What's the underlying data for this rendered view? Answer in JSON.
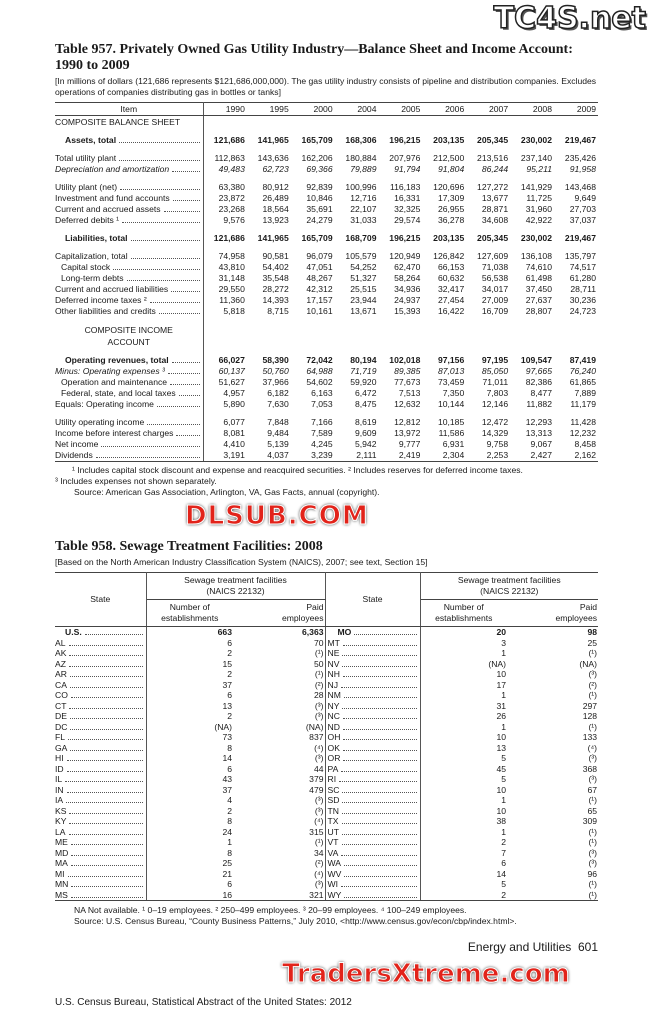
{
  "watermarks": {
    "top": "TC4S.net",
    "middle": "DLSUB.COM",
    "bottom": "TradersXtreme.com"
  },
  "table957": {
    "title": "Table 957. Privately Owned Gas Utility Industry—Balance Sheet and Income Account: 1990 to 2009",
    "headnote": "[In millions of dollars (121,686 represents $121,686,000,000). The gas utility industry consists of pipeline and distribution companies. Excludes operations of companies distributing gas in bottles or tanks]",
    "columns": [
      "Item",
      "1990",
      "1995",
      "2000",
      "2004",
      "2005",
      "2006",
      "2007",
      "2008",
      "2009"
    ],
    "rows": [
      {
        "type": "section",
        "label": "COMPOSITE BALANCE SHEET"
      },
      {
        "type": "spacer"
      },
      {
        "type": "bold",
        "label": "Assets, total",
        "values": [
          "121,686",
          "141,965",
          "165,709",
          "168,306",
          "196,215",
          "203,135",
          "205,345",
          "230,002",
          "219,467"
        ]
      },
      {
        "type": "spacer"
      },
      {
        "label": "Total utility plant",
        "values": [
          "112,863",
          "143,636",
          "162,206",
          "180,884",
          "207,976",
          "212,500",
          "213,516",
          "237,140",
          "235,426"
        ]
      },
      {
        "type": "italic",
        "label": "Depreciation and amortization",
        "values": [
          "49,483",
          "62,723",
          "69,366",
          "79,889",
          "91,794",
          "91,804",
          "86,244",
          "95,211",
          "91,958"
        ]
      },
      {
        "type": "spacer"
      },
      {
        "label": "Utility plant (net)",
        "values": [
          "63,380",
          "80,912",
          "92,839",
          "100,996",
          "116,183",
          "120,696",
          "127,272",
          "141,929",
          "143,468"
        ]
      },
      {
        "label": "Investment and fund accounts",
        "values": [
          "23,872",
          "26,489",
          "10,846",
          "12,716",
          "16,331",
          "17,309",
          "13,677",
          "11,725",
          "9,649"
        ]
      },
      {
        "label": "Current and accrued assets",
        "values": [
          "23,268",
          "18,564",
          "35,691",
          "22,107",
          "32,325",
          "26,955",
          "28,871",
          "31,960",
          "27,703"
        ]
      },
      {
        "label": "Deferred debits ¹",
        "values": [
          "9,576",
          "13,923",
          "24,279",
          "31,033",
          "29,574",
          "36,278",
          "34,608",
          "42,922",
          "37,037"
        ]
      },
      {
        "type": "spacer"
      },
      {
        "type": "bold",
        "label": "Liabilities, total",
        "values": [
          "121,686",
          "141,965",
          "165,709",
          "168,709",
          "196,215",
          "203,135",
          "205,345",
          "230,002",
          "219,467"
        ]
      },
      {
        "type": "spacer"
      },
      {
        "label": "Capitalization, total",
        "values": [
          "74,958",
          "90,581",
          "96,079",
          "105,579",
          "120,949",
          "126,842",
          "127,609",
          "136,108",
          "135,797"
        ]
      },
      {
        "type": "indent",
        "label": "Capital stock",
        "values": [
          "43,810",
          "54,402",
          "47,051",
          "54,252",
          "62,470",
          "66,153",
          "71,038",
          "74,610",
          "74,517"
        ]
      },
      {
        "type": "indent",
        "label": "Long-term debts",
        "values": [
          "31,148",
          "35,548",
          "48,267",
          "51,327",
          "58,264",
          "60,632",
          "56,538",
          "61,498",
          "61,280"
        ]
      },
      {
        "label": "Current and accrued liabilities",
        "values": [
          "29,550",
          "28,272",
          "42,312",
          "25,515",
          "34,936",
          "32,417",
          "34,017",
          "37,450",
          "28,711"
        ]
      },
      {
        "label": "Deferred income taxes ²",
        "values": [
          "11,360",
          "14,393",
          "17,157",
          "23,944",
          "24,937",
          "27,454",
          "27,009",
          "27,637",
          "30,236"
        ]
      },
      {
        "label": "Other liabilities and credits",
        "values": [
          "5,818",
          "8,715",
          "10,161",
          "13,671",
          "15,393",
          "16,422",
          "16,709",
          "28,807",
          "24,723"
        ]
      },
      {
        "type": "spacer"
      },
      {
        "type": "section",
        "label": "COMPOSITE INCOME ACCOUNT"
      },
      {
        "type": "spacer"
      },
      {
        "type": "bold",
        "label": "Operating revenues, total",
        "values": [
          "66,027",
          "58,390",
          "72,042",
          "80,194",
          "102,018",
          "97,156",
          "97,195",
          "109,547",
          "87,419"
        ]
      },
      {
        "type": "italic",
        "label": "Minus: Operating expenses ³",
        "values": [
          "60,137",
          "50,760",
          "64,988",
          "71,719",
          "89,385",
          "87,013",
          "85,050",
          "97,665",
          "76,240"
        ]
      },
      {
        "type": "indent",
        "label": "Operation and maintenance",
        "values": [
          "51,627",
          "37,966",
          "54,602",
          "59,920",
          "77,673",
          "73,459",
          "71,011",
          "82,386",
          "61,865"
        ]
      },
      {
        "type": "indent",
        "label": "Federal, state, and local taxes",
        "values": [
          "4,957",
          "6,182",
          "6,163",
          "6,472",
          "7,513",
          "7,350",
          "7,803",
          "8,477",
          "7,889"
        ]
      },
      {
        "label": "Equals: Operating income",
        "values": [
          "5,890",
          "7,630",
          "7,053",
          "8,475",
          "12,632",
          "10,144",
          "12,146",
          "11,882",
          "11,179"
        ]
      },
      {
        "type": "spacer"
      },
      {
        "label": "Utility operating income",
        "values": [
          "6,077",
          "7,848",
          "7,166",
          "8,619",
          "12,812",
          "10,185",
          "12,472",
          "12,293",
          "11,428"
        ]
      },
      {
        "label": "Income before interest charges",
        "values": [
          "8,081",
          "9,484",
          "7,589",
          "9,609",
          "13,972",
          "11,586",
          "14,329",
          "13,313",
          "12,232"
        ]
      },
      {
        "label": "Net income",
        "values": [
          "4,410",
          "5,139",
          "4,245",
          "5,942",
          "9,777",
          "6,931",
          "9,758",
          "9,067",
          "8,458"
        ]
      },
      {
        "label": "Dividends",
        "values": [
          "3,191",
          "4,037",
          "3,239",
          "2,111",
          "2,419",
          "2,304",
          "2,253",
          "2,427",
          "2,162"
        ]
      }
    ],
    "footnote1": "¹ Includes capital stock discount and expense and reacquired securities. ² Includes reserves for deferred income taxes.",
    "footnote2": "³ Includes expenses not shown separately.",
    "source": "Source: American Gas Association, Arlington, VA, Gas Facts, annual (copyright)."
  },
  "table958": {
    "title": "Table 958. Sewage Treatment Facilities: 2008",
    "headnote": "[Based on the North American Industry Classification System (NAICS), 2007; see text, Section 15]",
    "header": {
      "state": "State",
      "group": "Sewage treatment facilities (NAICS 22132)",
      "establishments": "Number of establishments",
      "employees": "Paid employees"
    },
    "rows": [
      {
        "left": [
          "U.S.",
          "663",
          "6,363"
        ],
        "right": [
          "MO",
          "20",
          "98"
        ]
      },
      {
        "left": [
          "AL",
          "6",
          "70"
        ],
        "right": [
          "MT",
          "3",
          "25"
        ]
      },
      {
        "left": [
          "AK",
          "2",
          "(¹)"
        ],
        "right": [
          "NE",
          "1",
          "(¹)"
        ]
      },
      {
        "left": [
          "AZ",
          "15",
          "50"
        ],
        "right": [
          "NV",
          "(NA)",
          "(NA)"
        ]
      },
      {
        "left": [
          "AR",
          "2",
          "(¹)"
        ],
        "right": [
          "NH",
          "10",
          "(³)"
        ]
      },
      {
        "left": [
          "CA",
          "37",
          "(²)"
        ],
        "right": [
          "NJ",
          "17",
          "(²)"
        ]
      },
      {
        "left": [
          "CO",
          "6",
          "28"
        ],
        "right": [
          "NM",
          "1",
          "(¹)"
        ]
      },
      {
        "left": [
          "CT",
          "13",
          "(³)"
        ],
        "right": [
          "NY",
          "31",
          "297"
        ]
      },
      {
        "left": [
          "DE",
          "2",
          "(³)"
        ],
        "right": [
          "NC",
          "26",
          "128"
        ]
      },
      {
        "left": [
          "DC",
          "(NA)",
          "(NA)"
        ],
        "right": [
          "ND",
          "1",
          "(¹)"
        ]
      },
      {
        "left": [
          "FL",
          "73",
          "837"
        ],
        "right": [
          "OH",
          "10",
          "133"
        ]
      },
      {
        "left": [
          "GA",
          "8",
          "(⁴)"
        ],
        "right": [
          "OK",
          "13",
          "(⁴)"
        ]
      },
      {
        "left": [
          "HI",
          "14",
          "(³)"
        ],
        "right": [
          "OR",
          "5",
          "(³)"
        ]
      },
      {
        "left": [
          "ID",
          "6",
          "44"
        ],
        "right": [
          "PA",
          "45",
          "368"
        ]
      },
      {
        "left": [
          "IL",
          "43",
          "379"
        ],
        "right": [
          "RI",
          "5",
          "(³)"
        ]
      },
      {
        "left": [
          "IN",
          "37",
          "479"
        ],
        "right": [
          "SC",
          "10",
          "67"
        ]
      },
      {
        "left": [
          "IA",
          "4",
          "(³)"
        ],
        "right": [
          "SD",
          "1",
          "(¹)"
        ]
      },
      {
        "left": [
          "KS",
          "2",
          "(³)"
        ],
        "right": [
          "TN",
          "10",
          "65"
        ]
      },
      {
        "left": [
          "KY",
          "8",
          "(⁴)"
        ],
        "right": [
          "TX",
          "38",
          "309"
        ]
      },
      {
        "left": [
          "LA",
          "24",
          "315"
        ],
        "right": [
          "UT",
          "1",
          "(¹)"
        ]
      },
      {
        "left": [
          "ME",
          "1",
          "(¹)"
        ],
        "right": [
          "VT",
          "2",
          "(¹)"
        ]
      },
      {
        "left": [
          "MD",
          "8",
          "34"
        ],
        "right": [
          "VA",
          "7",
          "(³)"
        ]
      },
      {
        "left": [
          "MA",
          "25",
          "(²)"
        ],
        "right": [
          "WA",
          "6",
          "(³)"
        ]
      },
      {
        "left": [
          "MI",
          "21",
          "(⁴)"
        ],
        "right": [
          "WV",
          "14",
          "96"
        ]
      },
      {
        "left": [
          "MN",
          "6",
          "(³)"
        ],
        "right": [
          "WI",
          "5",
          "(¹)"
        ]
      },
      {
        "left": [
          "MS",
          "16",
          "321"
        ],
        "right": [
          "WY",
          "2",
          "(¹)"
        ]
      }
    ],
    "footnote": "NA Not available. ¹ 0–19 employees. ² 250–499 employees. ³ 20–99 employees. ⁴ 100–249 employees.",
    "source": "Source: U.S. Census Bureau, “County Business Patterns,” July 2010, <http://www.census.gov/econ/cbp/index.html>."
  },
  "footer": {
    "section": "Energy and Utilities",
    "page": "601",
    "publisher": "U.S. Census Bureau, Statistical Abstract of the United States: 2012"
  }
}
